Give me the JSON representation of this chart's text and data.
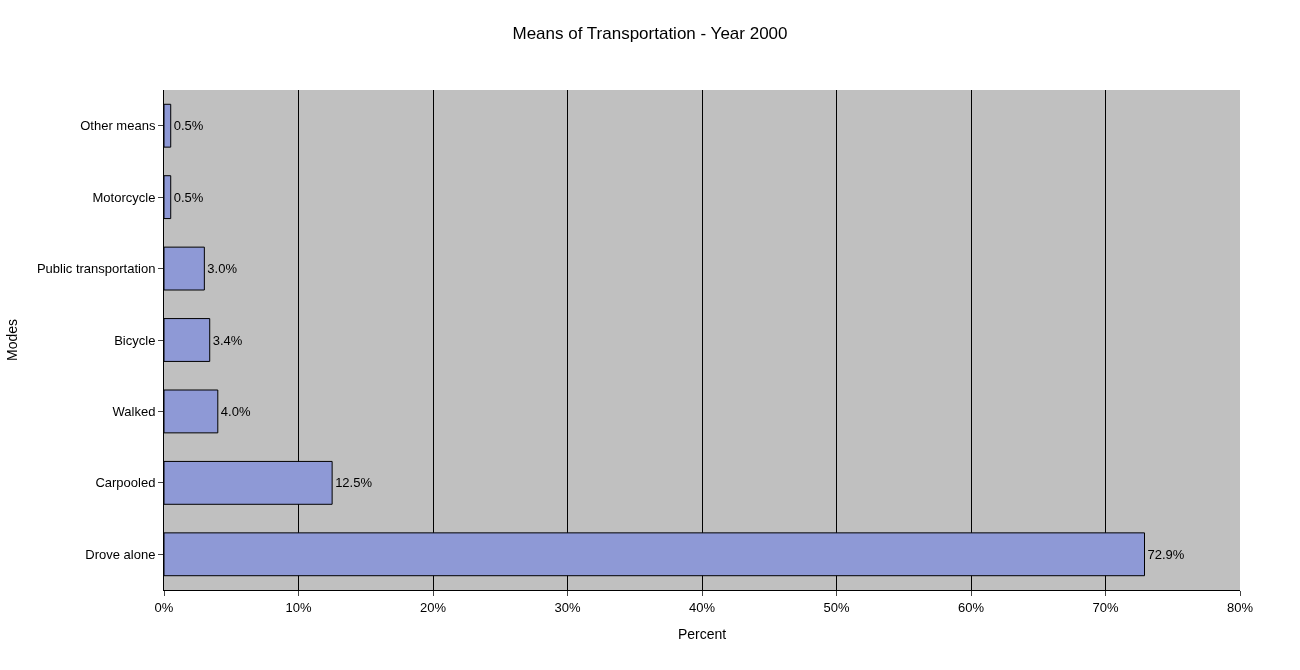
{
  "chart_data": {
    "type": "bar",
    "orientation": "horizontal",
    "title": "Means of Transportation - Year 2000",
    "xlabel": "Percent",
    "ylabel": "Modes",
    "categories": [
      "Other means",
      "Motorcycle",
      "Public transportation",
      "Bicycle",
      "Walked",
      "Carpooled",
      "Drove alone"
    ],
    "values": [
      0.5,
      0.5,
      3.0,
      3.4,
      4.0,
      12.5,
      72.9
    ],
    "value_labels": [
      "0.5%",
      "0.5%",
      "3.0%",
      "3.4%",
      "4.0%",
      "12.5%",
      "72.9%"
    ],
    "color": "#8e99d6",
    "xlim": [
      0,
      80
    ],
    "xticks": [
      {
        "value": 0,
        "label": "0%"
      },
      {
        "value": 10,
        "label": "10%"
      },
      {
        "value": 20,
        "label": "20%"
      },
      {
        "value": 30,
        "label": "30%"
      },
      {
        "value": 40,
        "label": "40%"
      },
      {
        "value": 50,
        "label": "50%"
      },
      {
        "value": 60,
        "label": "60%"
      },
      {
        "value": 70,
        "label": "70%"
      },
      {
        "value": 80,
        "label": "80%"
      }
    ],
    "grid": "x"
  }
}
